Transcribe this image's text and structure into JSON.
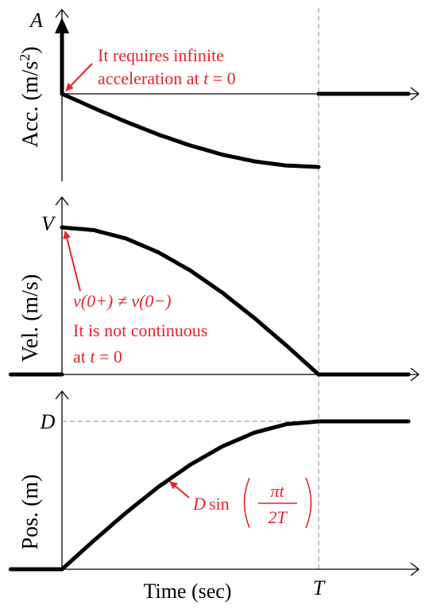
{
  "colors": {
    "curve": "#000000",
    "annotation": "#e8232a",
    "guide": "#a0a0a0"
  },
  "chart_data": [
    {
      "type": "line",
      "ylabel_main": "Acc. (m/s",
      "ylabel_sup": "2",
      "ylabel_tail": ")",
      "tick_y": "A",
      "annotation": {
        "line1": "It requires infinite",
        "line2_pre": "acceleration at ",
        "line2_var": "t",
        "line2_post": " = 0"
      },
      "series": [
        {
          "x": [
            0,
            0.125,
            0.25,
            0.375,
            0.5,
            0.625,
            0.75,
            0.875,
            1
          ],
          "y": [
            0,
            -0.196,
            -0.383,
            -0.556,
            -0.707,
            -0.831,
            -0.924,
            -0.981,
            -1
          ]
        },
        {
          "x": [
            1,
            1.35
          ],
          "y": [
            0,
            0
          ]
        }
      ],
      "impulse": {
        "x": 0,
        "y": "A"
      },
      "xlim": [
        -0.2,
        1.4
      ]
    },
    {
      "type": "line",
      "ylabel": "Vel. (m/s)",
      "tick_y": "V",
      "annotation": {
        "line1": "v(0+) ≠ v(0−)",
        "line2": "It is not continuous",
        "line3_pre": "at ",
        "line3_var": "t",
        "line3_post": " = 0"
      },
      "series": [
        {
          "x": [
            -0.2,
            0
          ],
          "y": [
            0,
            0
          ]
        },
        {
          "x": [
            0,
            0.125,
            0.25,
            0.375,
            0.5,
            0.625,
            0.75,
            0.875,
            1
          ],
          "y": [
            1,
            0.981,
            0.924,
            0.831,
            0.707,
            0.556,
            0.383,
            0.196,
            0
          ]
        },
        {
          "x": [
            1,
            1.35
          ],
          "y": [
            0,
            0
          ]
        }
      ],
      "xlim": [
        -0.2,
        1.4
      ]
    },
    {
      "type": "line",
      "ylabel": "Pos. (m)",
      "tick_y": "D",
      "tick_x": "T",
      "xlabel": "Time (sec)",
      "annotation": {
        "D": "D",
        "sin": "sin",
        "num": "πt",
        "den": "2T"
      },
      "series": [
        {
          "x": [
            -0.2,
            0
          ],
          "y": [
            0,
            0
          ]
        },
        {
          "x": [
            0,
            0.125,
            0.25,
            0.375,
            0.5,
            0.625,
            0.75,
            0.875,
            1
          ],
          "y": [
            0,
            0.195,
            0.383,
            0.556,
            0.707,
            0.831,
            0.924,
            0.981,
            1
          ]
        },
        {
          "x": [
            1,
            1.35
          ],
          "y": [
            1,
            1
          ]
        }
      ],
      "xlim": [
        -0.2,
        1.4
      ]
    }
  ]
}
